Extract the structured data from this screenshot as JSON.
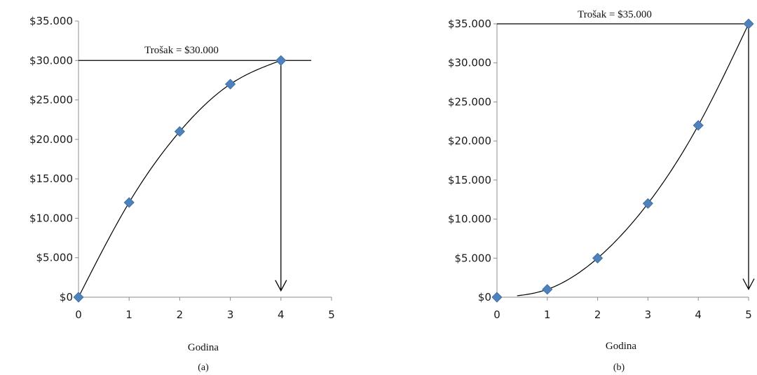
{
  "charts": [
    {
      "caption": "(a)",
      "xlabel": "Godina",
      "annotation": "Trošak = $30.000",
      "marker_color": "#4F81BD",
      "chart_data": {
        "type": "scatter",
        "x": [
          0,
          1,
          2,
          3,
          4
        ],
        "y": [
          0,
          12000,
          21000,
          27000,
          30000
        ],
        "xlim": [
          0,
          5
        ],
        "ylim": [
          0,
          35000
        ],
        "xticks": [
          0,
          1,
          2,
          3,
          4,
          5
        ],
        "yticks": [
          0,
          5000,
          10000,
          15000,
          20000,
          25000,
          30000,
          35000
        ],
        "xtick_labels": [
          "0",
          "1",
          "2",
          "3",
          "4",
          "5"
        ],
        "ytick_labels": [
          "$0",
          "$5.000",
          "$10.000",
          "$15.000",
          "$20.000",
          "$25.000",
          "$30.000",
          "$35.000"
        ],
        "cost_line_y": 30000,
        "cost_line_x_end": 4.6,
        "arrow_x": 4,
        "arrow_from_y": 30000,
        "arrow_to_y": 1000,
        "grid": false,
        "smooth_curve": true
      }
    },
    {
      "caption": "(b)",
      "xlabel": "Godina",
      "annotation": "Trošak = $35.000",
      "marker_color": "#4F81BD",
      "chart_data": {
        "type": "scatter",
        "x": [
          0,
          1,
          2,
          3,
          4,
          5
        ],
        "y": [
          0,
          1000,
          5000,
          12000,
          22000,
          35000
        ],
        "xlim": [
          0,
          5
        ],
        "ylim": [
          0,
          35000
        ],
        "xticks": [
          0,
          1,
          2,
          3,
          4,
          5
        ],
        "yticks": [
          0,
          5000,
          10000,
          15000,
          20000,
          25000,
          30000,
          35000
        ],
        "xtick_labels": [
          "0",
          "1",
          "2",
          "3",
          "4",
          "5"
        ],
        "ytick_labels": [
          "$0",
          "$5.000",
          "$10.000",
          "$15.000",
          "$20.000",
          "$25.000",
          "$30.000",
          "$35.000"
        ],
        "cost_line_y": 35000,
        "cost_line_x_end": 5,
        "arrow_x": 5,
        "arrow_from_y": 35000,
        "arrow_to_y": 1200,
        "grid": false,
        "smooth_curve": true,
        "curve_start_x": 0.4
      }
    }
  ]
}
